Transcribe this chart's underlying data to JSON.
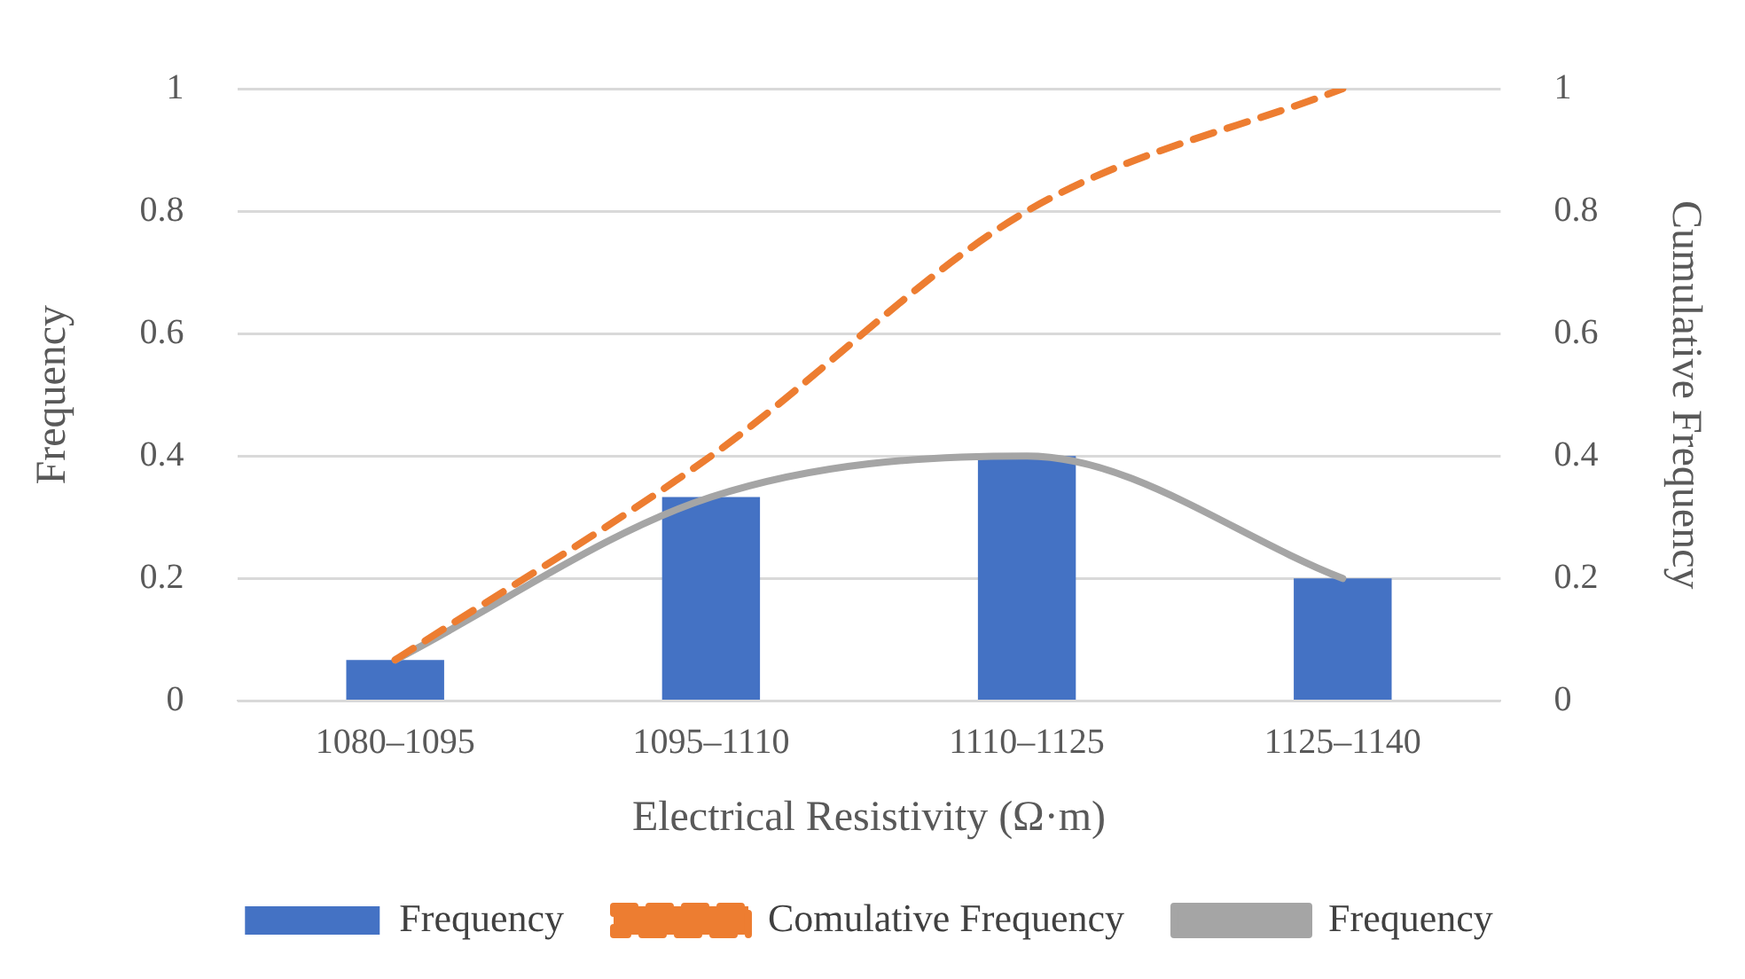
{
  "chart_data": {
    "type": "bar",
    "xlabel": "Electrical Resistivity (Ω·m)",
    "ylabel": "Frequency",
    "y2label": "Cumulative Frequency",
    "categories": [
      "1080–1095",
      "1095–1110",
      "1110–1125",
      "1125–1140"
    ],
    "series": [
      {
        "name": "Frequency",
        "color": "#4472c4",
        "values": [
          0.067,
          0.333,
          0.4,
          0.2
        ]
      },
      {
        "name": "Comulative Frequency",
        "type": "line",
        "axis": "y2",
        "color": "#ed7d31",
        "line_style": "dashed",
        "values": [
          0.067,
          0.4,
          0.8,
          1
        ]
      },
      {
        "name": "Frequency",
        "type": "line",
        "color": "#a5a5a5",
        "line_style": "solid",
        "values": [
          0.067,
          0.333,
          0.4,
          0.2
        ]
      }
    ],
    "ylim": [
      0,
      1
    ],
    "yticks": [
      0,
      0.2,
      0.4,
      0.6,
      0.8,
      1
    ],
    "y2lim": [
      0,
      1
    ],
    "y2ticks": [
      0,
      0.2,
      0.4,
      0.6,
      0.8,
      1
    ],
    "grid": "y",
    "legend": "bottom",
    "marker": "none"
  }
}
